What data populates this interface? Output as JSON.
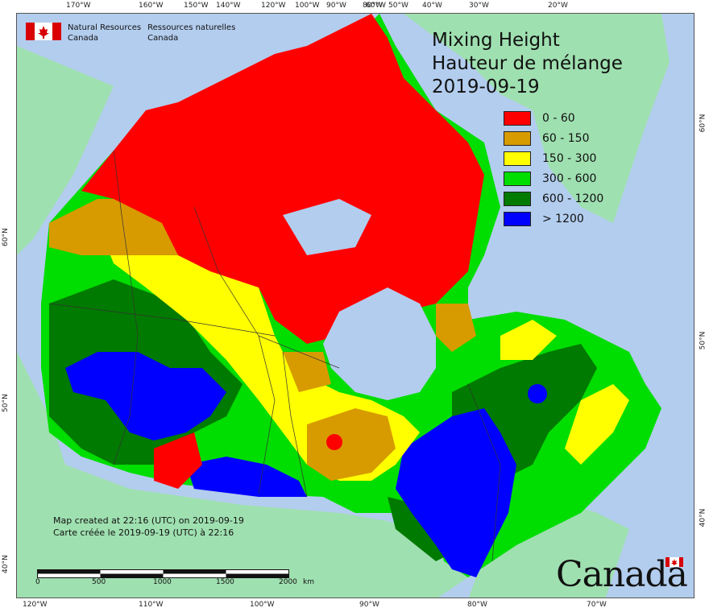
{
  "map": {
    "title_en": "Mixing Height",
    "title_fr": "Hauteur de mélange",
    "date": "2019-09-19",
    "legend": [
      {
        "label": "0 - 60",
        "color": "#ff0000"
      },
      {
        "label": "60 - 150",
        "color": "#d79b00"
      },
      {
        "label": "150 - 300",
        "color": "#ffff00"
      },
      {
        "label": "300 - 600",
        "color": "#00dd00"
      },
      {
        "label": "600 - 1200",
        "color": "#007a00"
      },
      {
        "label": "> 1200",
        "color": "#0000ff"
      }
    ],
    "colors": {
      "water": "#b3cdee",
      "land_outside": "#9fe0b0",
      "border": "#333333"
    }
  },
  "agency": {
    "en_line1": "Natural Resources",
    "en_line2": "Canada",
    "fr_line1": "Ressources naturelles",
    "fr_line2": "Canada"
  },
  "credits": {
    "line_en": "Map created at 22:16 (UTC) on 2019-09-19",
    "line_fr": "Carte créée le 2019-09-19 (UTC) à 22:16"
  },
  "scale": {
    "labels": [
      "0",
      "500",
      "1000",
      "1500",
      "2000"
    ],
    "unit": "km"
  },
  "wordmark": "Canada",
  "axes": {
    "top": [
      "170°W",
      "160°W",
      "150°W",
      "140°W",
      "120°W",
      "100°W",
      "90°W",
      "80°W",
      "60°W",
      "50°W",
      "40°W",
      "30°W",
      "20°W"
    ],
    "bottom": [
      "120°W",
      "110°W",
      "100°W",
      "90°W",
      "80°W",
      "70°W"
    ],
    "left": [
      "60°N",
      "50°N",
      "40°N"
    ],
    "right": [
      "60°N",
      "50°N",
      "40°N"
    ]
  }
}
